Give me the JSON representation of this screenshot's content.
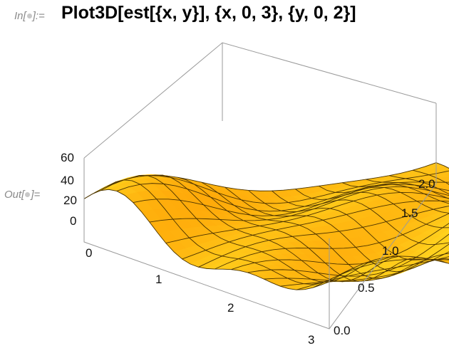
{
  "notebook": {
    "input_label": {
      "prefix": "In[",
      "suffix": "]:="
    },
    "output_label": {
      "prefix": "Out[",
      "suffix": "]="
    },
    "input_code": "Plot3D[est[{x, y}], {x, 0, 3}, {y, 0, 2}]"
  },
  "plot": {
    "type": "Plot3D",
    "surface_color": "#ffc21a",
    "mesh_color": "#4a3300",
    "box_color": "#9a9a9a",
    "x_ticks": [
      "0",
      "1",
      "2",
      "3"
    ],
    "y_ticks": [
      "0.0",
      "0.5",
      "1.0",
      "1.5",
      "2.0"
    ],
    "z_ticks": [
      "0",
      "20",
      "40",
      "60"
    ],
    "x_range": [
      0,
      3
    ],
    "y_range": [
      0,
      2
    ],
    "z_range": [
      0,
      60
    ]
  }
}
